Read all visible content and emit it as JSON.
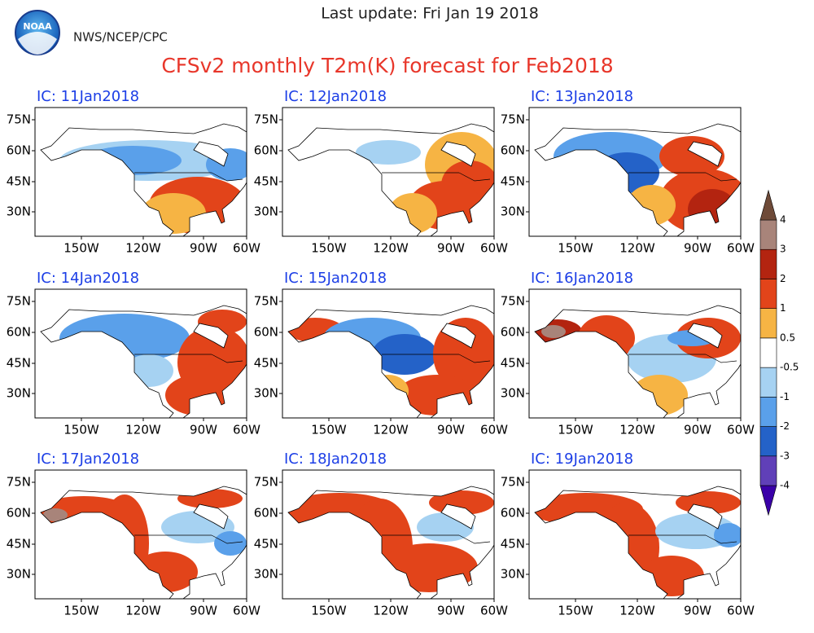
{
  "header": {
    "update": "Last update: Fri Jan 19 2018",
    "agency": "NWS/NCEP/CPC",
    "logo": "NOAA",
    "title": "CFSv2 monthly T2m(K) forecast for Feb2018"
  },
  "panels": [
    {
      "label": "IC: 11Jan2018"
    },
    {
      "label": "IC: 12Jan2018"
    },
    {
      "label": "IC: 13Jan2018"
    },
    {
      "label": "IC: 14Jan2018"
    },
    {
      "label": "IC: 15Jan2018"
    },
    {
      "label": "IC: 16Jan2018"
    },
    {
      "label": "IC: 17Jan2018"
    },
    {
      "label": "IC: 18Jan2018"
    },
    {
      "label": "IC: 19Jan2018"
    }
  ],
  "map": {
    "lat_labels": [
      "75N",
      "60N",
      "45N",
      "30N"
    ],
    "lon_labels": [
      "150W",
      "120W",
      "90W",
      "60W"
    ]
  },
  "colorbar": {
    "levels": [
      -4,
      -3,
      -2,
      -1,
      -0.5,
      0.5,
      1,
      2,
      3,
      4
    ],
    "colors": [
      "#3a00a8",
      "#6040b8",
      "#2462c8",
      "#5aa0ea",
      "#a6d2f2",
      "#ffffff",
      "#f6b444",
      "#e2441a",
      "#b32410",
      "#a8847a",
      "#6e4a38"
    ]
  }
}
